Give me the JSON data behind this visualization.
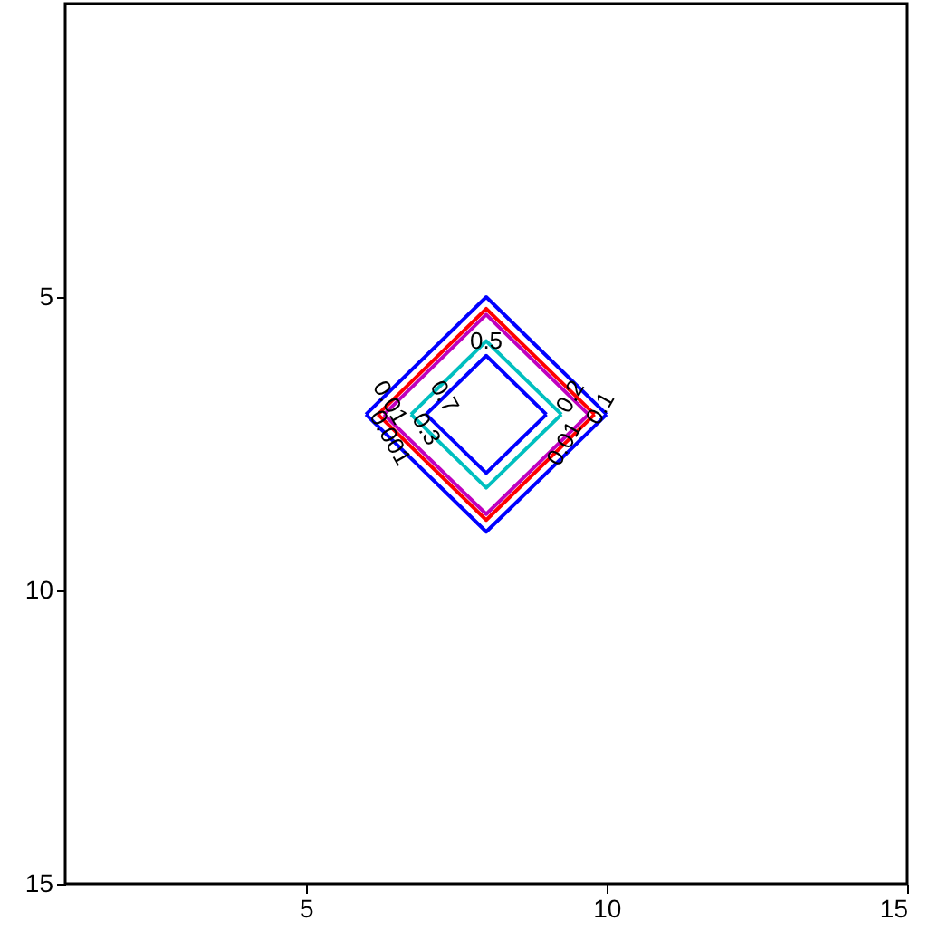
{
  "chart_data": {
    "type": "line",
    "xlim": [
      1,
      15
    ],
    "ylim": [
      15,
      0
    ],
    "xticks": [
      5,
      10,
      15
    ],
    "yticks": [
      5,
      10,
      15
    ],
    "grid": false,
    "line_style": "solid",
    "marker": "none",
    "series": [
      {
        "color": "#0000ff",
        "x": [
          7,
          8,
          9
        ],
        "values": [
          7,
          6,
          7
        ]
      },
      {
        "color": "#0000ff",
        "x": [
          7,
          8,
          9
        ],
        "values": [
          7,
          8,
          7
        ]
      },
      {
        "color": "#00bfbf",
        "x": [
          6.75,
          8,
          9.25
        ],
        "values": [
          7,
          5.75,
          7
        ]
      },
      {
        "color": "#00bfbf",
        "x": [
          6.75,
          8,
          9.25
        ],
        "values": [
          7,
          8.25,
          7
        ]
      },
      {
        "color": "#bf00bf",
        "x": [
          6.3,
          8,
          9.7
        ],
        "values": [
          7,
          5.3,
          7
        ]
      },
      {
        "color": "#bf00bf",
        "x": [
          6.3,
          8,
          9.7
        ],
        "values": [
          7,
          8.7,
          7
        ]
      },
      {
        "color": "#ff0000",
        "x": [
          6.2,
          8,
          9.8
        ],
        "values": [
          7,
          5.2,
          7
        ]
      },
      {
        "color": "#ff0000",
        "x": [
          6.2,
          8,
          9.8
        ],
        "values": [
          7,
          8.8,
          7
        ]
      },
      {
        "color": "#0000ff",
        "x": [
          6,
          8,
          10
        ],
        "values": [
          7,
          5,
          7
        ]
      },
      {
        "color": "#0000ff",
        "x": [
          6,
          8,
          10
        ],
        "values": [
          7,
          9,
          7
        ]
      }
    ],
    "annotations": [
      {
        "text": "0.5",
        "x": 8,
        "y": 5.75
      },
      {
        "text": "0.7",
        "x": 7.3,
        "y": 6.7
      },
      {
        "text": "0.3",
        "x": 7.0,
        "y": 7.25
      },
      {
        "text": "0.001",
        "x": 6.4,
        "y": 7.4
      },
      {
        "text": "0.01",
        "x": 6.4,
        "y": 6.8
      },
      {
        "text": "0.2",
        "x": 9.4,
        "y": 6.7
      },
      {
        "text": "0.1",
        "x": 9.9,
        "y": 6.9
      },
      {
        "text": "0.01",
        "x": 9.3,
        "y": 7.5
      }
    ]
  }
}
